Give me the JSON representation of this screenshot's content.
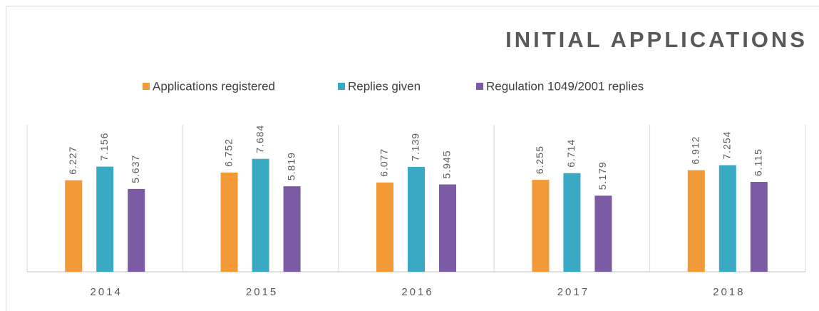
{
  "chart_data": {
    "type": "bar",
    "title": "INITIAL APPLICATIONS",
    "categories": [
      "2014",
      "2015",
      "2016",
      "2017",
      "2018"
    ],
    "series": [
      {
        "name": "Applications registered",
        "color": "#f39a38",
        "values": [
          6.227,
          6.752,
          6.077,
          6.255,
          6.912
        ]
      },
      {
        "name": "Replies given",
        "color": "#3aa9c4",
        "values": [
          7.156,
          7.684,
          7.139,
          6.714,
          7.254
        ]
      },
      {
        "name": "Regulation 1049/2001 replies",
        "color": "#7b5ba3",
        "values": [
          5.637,
          5.819,
          5.945,
          5.179,
          6.115
        ]
      }
    ],
    "ylim": [
      0,
      10
    ],
    "legend": "top"
  }
}
